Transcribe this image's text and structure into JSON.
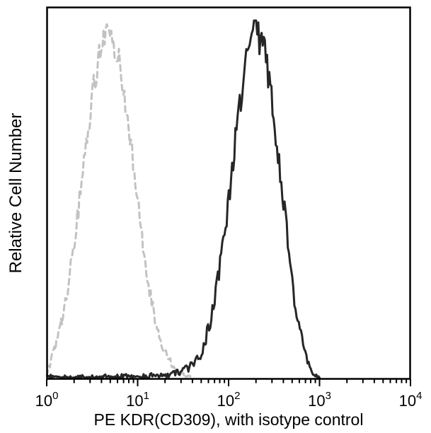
{
  "figure": {
    "background": "#ffffff",
    "axis_color": "#000000",
    "xlabel": "PE KDR(CD309), with isotype control",
    "ylabel": "Relative Cell Number"
  },
  "chart_data": {
    "type": "area",
    "subtype": "flow-cytometry-histogram-overlay",
    "title": "",
    "xlabel": "PE KDR(CD309), with isotype control",
    "ylabel": "Relative Cell Number",
    "x_scale": "log10",
    "x_range": [
      1,
      10000
    ],
    "x_tick_exponents": [
      0,
      1,
      2,
      3,
      4
    ],
    "y_axis": "relative cell number, unlabeled axis",
    "legend_position": "none",
    "grid": false,
    "series": [
      {
        "name": "isotype control",
        "line_style": "dashed",
        "color": "#c2c2c2",
        "peak_x": 4.8,
        "seed": 7,
        "noise_base": 0.004,
        "noise_scale": 0.035,
        "log_x": [
          0.0,
          0.1,
          0.2,
          0.3,
          0.4,
          0.5,
          0.6,
          0.68,
          0.8,
          0.9,
          1.0,
          1.1,
          1.2,
          1.3,
          1.4,
          1.5,
          1.6
        ],
        "values": [
          0.01,
          0.09,
          0.2,
          0.37,
          0.58,
          0.79,
          0.94,
          0.985,
          0.89,
          0.71,
          0.49,
          0.29,
          0.155,
          0.07,
          0.028,
          0.008,
          0.0
        ]
      },
      {
        "name": "PE KDR(CD309)",
        "line_style": "solid",
        "color": "#262626",
        "peak_x": 200,
        "seed": 42,
        "noise_base": 0.004,
        "noise_scale": 0.045,
        "log_x": [
          0.02,
          0.3,
          0.6,
          0.9,
          1.1,
          1.3,
          1.4,
          1.5,
          1.6,
          1.7,
          1.8,
          1.9,
          2.0,
          2.1,
          2.2,
          2.3,
          2.4,
          2.5,
          2.6,
          2.7,
          2.8,
          2.85,
          2.9,
          2.95,
          3.0
        ],
        "values": [
          0.003,
          0.002,
          0.003,
          0.004,
          0.005,
          0.008,
          0.012,
          0.02,
          0.035,
          0.07,
          0.155,
          0.3,
          0.5,
          0.725,
          0.905,
          0.975,
          0.905,
          0.725,
          0.5,
          0.26,
          0.11,
          0.06,
          0.02,
          0.005,
          0.0
        ]
      }
    ]
  }
}
